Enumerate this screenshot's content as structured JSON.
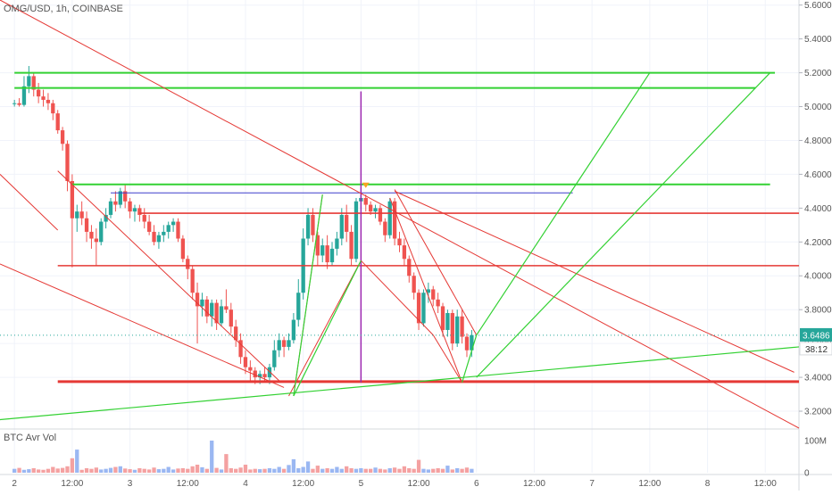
{
  "chart_data": [
    {
      "type": "candlestick",
      "title": "OMG/USD, 1h, COINBASE",
      "y_axis": {
        "ticks": [
          3.2,
          3.4,
          3.6,
          3.8,
          4.0,
          4.2,
          4.4,
          4.6,
          4.8,
          5.0,
          5.2,
          5.4,
          5.6
        ],
        "range": [
          3.1,
          5.63
        ]
      },
      "x_axis": {
        "ticks": [
          {
            "t": 0,
            "label": "2"
          },
          {
            "t": 12,
            "label": "12:00"
          },
          {
            "t": 24,
            "label": "3"
          },
          {
            "t": 36,
            "label": "12:00"
          },
          {
            "t": 48,
            "label": "4"
          },
          {
            "t": 60,
            "label": "12:00"
          },
          {
            "t": 72,
            "label": "5"
          },
          {
            "t": 84,
            "label": "12:00"
          },
          {
            "t": 96,
            "label": "6"
          },
          {
            "t": 108,
            "label": "12:00"
          },
          {
            "t": 120,
            "label": "7"
          },
          {
            "t": 132,
            "label": "12:00"
          },
          {
            "t": 144,
            "label": "8"
          },
          {
            "t": 156,
            "label": "12:00"
          }
        ],
        "range": [
          -3,
          163
        ]
      },
      "last_price": "3.6486",
      "countdown": "38:12",
      "candles": [
        [
          5.02,
          5.04,
          5.0,
          5.02
        ],
        [
          5.02,
          5.05,
          5.0,
          5.01
        ],
        [
          5.01,
          5.18,
          5.0,
          5.12
        ],
        [
          5.12,
          5.24,
          5.08,
          5.18
        ],
        [
          5.18,
          5.2,
          5.06,
          5.1
        ],
        [
          5.1,
          5.14,
          5.02,
          5.06
        ],
        [
          5.06,
          5.1,
          5.0,
          5.04
        ],
        [
          5.04,
          5.08,
          4.98,
          5.02
        ],
        [
          5.02,
          5.04,
          4.92,
          4.96
        ],
        [
          4.96,
          4.98,
          4.84,
          4.86
        ],
        [
          4.86,
          4.88,
          4.74,
          4.78
        ],
        [
          4.78,
          4.8,
          4.5,
          4.56
        ],
        [
          4.56,
          4.6,
          4.05,
          4.34
        ],
        [
          4.34,
          4.42,
          4.26,
          4.38
        ],
        [
          4.38,
          4.44,
          4.3,
          4.34
        ],
        [
          4.34,
          4.38,
          4.2,
          4.26
        ],
        [
          4.26,
          4.3,
          4.16,
          4.22
        ],
        [
          4.22,
          4.28,
          4.06,
          4.2
        ],
        [
          4.2,
          4.34,
          4.18,
          4.32
        ],
        [
          4.32,
          4.4,
          4.28,
          4.36
        ],
        [
          4.36,
          4.46,
          4.34,
          4.44
        ],
        [
          4.44,
          4.5,
          4.38,
          4.42
        ],
        [
          4.42,
          4.52,
          4.4,
          4.5
        ],
        [
          4.5,
          4.54,
          4.4,
          4.44
        ],
        [
          4.44,
          4.46,
          4.34,
          4.38
        ],
        [
          4.38,
          4.42,
          4.32,
          4.4
        ],
        [
          4.4,
          4.42,
          4.32,
          4.36
        ],
        [
          4.36,
          4.4,
          4.28,
          4.32
        ],
        [
          4.32,
          4.36,
          4.24,
          4.26
        ],
        [
          4.26,
          4.3,
          4.18,
          4.2
        ],
        [
          4.2,
          4.26,
          4.16,
          4.24
        ],
        [
          4.24,
          4.3,
          4.2,
          4.26
        ],
        [
          4.26,
          4.32,
          4.22,
          4.3
        ],
        [
          4.3,
          4.34,
          4.26,
          4.32
        ],
        [
          4.32,
          4.34,
          4.2,
          4.22
        ],
        [
          4.22,
          4.24,
          4.08,
          4.1
        ],
        [
          4.1,
          4.12,
          3.98,
          4.04
        ],
        [
          4.04,
          4.06,
          3.86,
          3.9
        ],
        [
          3.9,
          3.96,
          3.6,
          3.82
        ],
        [
          3.82,
          3.9,
          3.76,
          3.86
        ],
        [
          3.86,
          3.88,
          3.72,
          3.76
        ],
        [
          3.76,
          3.86,
          3.7,
          3.84
        ],
        [
          3.84,
          3.86,
          3.68,
          3.72
        ],
        [
          3.72,
          3.86,
          3.7,
          3.82
        ],
        [
          3.82,
          3.92,
          3.78,
          3.8
        ],
        [
          3.8,
          3.84,
          3.66,
          3.7
        ],
        [
          3.7,
          3.74,
          3.58,
          3.62
        ],
        [
          3.62,
          3.66,
          3.48,
          3.52
        ],
        [
          3.52,
          3.56,
          3.42,
          3.46
        ],
        [
          3.46,
          3.5,
          3.38,
          3.44
        ],
        [
          3.44,
          3.46,
          3.36,
          3.4
        ],
        [
          3.4,
          3.44,
          3.36,
          3.42
        ],
        [
          3.42,
          3.46,
          3.38,
          3.4
        ],
        [
          3.4,
          3.48,
          3.36,
          3.46
        ],
        [
          3.46,
          3.62,
          3.44,
          3.56
        ],
        [
          3.56,
          3.66,
          3.52,
          3.62
        ],
        [
          3.62,
          3.64,
          3.52,
          3.58
        ],
        [
          3.58,
          3.66,
          3.56,
          3.62
        ],
        [
          3.62,
          3.78,
          3.6,
          3.74
        ],
        [
          3.74,
          3.98,
          3.7,
          3.9
        ],
        [
          3.9,
          4.28,
          3.86,
          4.22
        ],
        [
          4.22,
          4.4,
          4.18,
          4.36
        ],
        [
          4.36,
          4.4,
          4.2,
          4.24
        ],
        [
          4.24,
          4.26,
          4.06,
          4.12
        ],
        [
          4.12,
          4.22,
          4.08,
          4.18
        ],
        [
          4.18,
          4.24,
          4.04,
          4.08
        ],
        [
          4.08,
          4.2,
          4.06,
          4.16
        ],
        [
          4.16,
          4.26,
          4.12,
          4.22
        ],
        [
          4.22,
          4.4,
          4.18,
          4.36
        ],
        [
          4.36,
          4.42,
          4.2,
          4.26
        ],
        [
          4.26,
          4.3,
          4.06,
          4.1
        ],
        [
          4.1,
          4.46,
          4.08,
          4.44
        ],
        [
          4.44,
          4.52,
          4.4,
          4.46
        ],
        [
          4.46,
          4.48,
          4.38,
          4.42
        ],
        [
          4.42,
          4.44,
          4.36,
          4.38
        ],
        [
          4.38,
          4.42,
          4.34,
          4.4
        ],
        [
          4.4,
          4.42,
          4.3,
          4.32
        ],
        [
          4.32,
          4.34,
          4.2,
          4.24
        ],
        [
          4.24,
          4.46,
          4.22,
          4.44
        ],
        [
          4.44,
          4.46,
          4.18,
          4.22
        ],
        [
          4.22,
          4.26,
          4.14,
          4.18
        ],
        [
          4.18,
          4.22,
          4.06,
          4.1
        ],
        [
          4.1,
          4.12,
          3.96,
          4.0
        ],
        [
          4.0,
          4.02,
          3.86,
          3.9
        ],
        [
          3.9,
          3.92,
          3.68,
          3.72
        ],
        [
          3.72,
          3.92,
          3.7,
          3.9
        ],
        [
          3.9,
          3.96,
          3.84,
          3.92
        ],
        [
          3.92,
          3.94,
          3.82,
          3.86
        ],
        [
          3.86,
          3.9,
          3.78,
          3.82
        ],
        [
          3.82,
          3.84,
          3.64,
          3.68
        ],
        [
          3.68,
          3.8,
          3.64,
          3.78
        ],
        [
          3.78,
          3.8,
          3.56,
          3.6
        ],
        [
          3.6,
          3.8,
          3.58,
          3.76
        ],
        [
          3.76,
          3.8,
          3.6,
          3.64
        ],
        [
          3.64,
          3.66,
          3.52,
          3.56
        ],
        [
          3.56,
          3.68,
          3.52,
          3.65
        ]
      ],
      "volume": {
        "label": "BTC Avr Vol",
        "ticks": [
          {
            "v": 0,
            "label": "0"
          },
          {
            "v": 100,
            "label": "100M"
          }
        ],
        "range": [
          0,
          125
        ],
        "bars": [
          12,
          15,
          9,
          11,
          14,
          10,
          9,
          12,
          18,
          13,
          15,
          20,
          45,
          11,
          9,
          14,
          12,
          16,
          10,
          12,
          15,
          18,
          20,
          13,
          11,
          9,
          14,
          12,
          10,
          16,
          11,
          12,
          18,
          10,
          13,
          14,
          12,
          20,
          25,
          17,
          12,
          15,
          15,
          10,
          12,
          14,
          12,
          16,
          12,
          10,
          12,
          11,
          12,
          14,
          12,
          18,
          12,
          24,
          20,
          14,
          18,
          12,
          12,
          22,
          12,
          14,
          12,
          18,
          12,
          20,
          14,
          12,
          14,
          12,
          12,
          16,
          12,
          10,
          14,
          16,
          12,
          20,
          14,
          12,
          16,
          12,
          10,
          12,
          14,
          12,
          16,
          10,
          14,
          12,
          16,
          12
        ],
        "spikes": [
          {
            "i": 13,
            "v": 72
          },
          {
            "i": 41,
            "v": 100
          },
          {
            "i": 44,
            "v": 58
          },
          {
            "i": 48,
            "v": 25
          },
          {
            "i": 58,
            "v": 42
          },
          {
            "i": 61,
            "v": 35
          },
          {
            "i": 84,
            "v": 40
          },
          {
            "i": 90,
            "v": 22
          }
        ]
      },
      "drawings": {
        "green_horizontal": [
          {
            "t1": 0,
            "t2": 158,
            "p": 5.2
          },
          {
            "t1": 0,
            "t2": 154,
            "p": 5.11
          },
          {
            "t1": 12,
            "t2": 157,
            "p": 4.54
          }
        ],
        "red_horizontal": [
          {
            "t1": 26,
            "t2": 163,
            "p": 4.37
          },
          {
            "t1": 9,
            "t2": 163,
            "p": 4.06
          },
          {
            "t1": 9,
            "t2": 163,
            "p": 3.375
          }
        ],
        "blue_horizontal": [
          {
            "t1": 20,
            "t2": 116,
            "p": 4.49
          }
        ],
        "purple_vertical": [
          {
            "t": 72,
            "p1": 3.37,
            "p2": 5.09
          }
        ],
        "red_lines": [
          [
            -3,
            4.6,
            9,
            4.27
          ],
          [
            -3,
            5.63,
            163,
            3.1
          ],
          [
            9,
            4.62,
            55,
            3.38
          ],
          [
            -3,
            4.07,
            56,
            3.34
          ],
          [
            79,
            4.5,
            162,
            3.43
          ],
          [
            78,
            4.46,
            93,
            3.37
          ],
          [
            72,
            4.09,
            87,
            3.65
          ],
          [
            87,
            3.65,
            93,
            3.37
          ],
          [
            79,
            4.51,
            96,
            3.65
          ],
          [
            72,
            4.09,
            57,
            3.29
          ],
          [
            58,
            3.29,
            64,
            4.48
          ]
        ],
        "green_lines": [
          [
            58,
            3.29,
            64,
            4.48
          ],
          [
            58,
            3.29,
            72,
            4.09
          ],
          [
            -3,
            3.15,
            163,
            3.58
          ],
          [
            93,
            3.37,
            96,
            3.65
          ],
          [
            96,
            3.65,
            132,
            5.2
          ],
          [
            96,
            3.4,
            157,
            5.2
          ]
        ],
        "markers": [
          {
            "t": 73,
            "p": 4.53,
            "color": "#f5a623"
          }
        ]
      }
    }
  ],
  "colors": {
    "up": "#26a69a",
    "down": "#ef5350",
    "hline_green": "#33d133",
    "hline_red": "#e53935",
    "hline_blue": "#3f3fcc",
    "purple": "#9c27b0",
    "vol_up": "#9ab7f2",
    "vol_down": "#f4a1a1",
    "price_tag": "#26a69a",
    "countdown_tag": "#ffffff"
  }
}
